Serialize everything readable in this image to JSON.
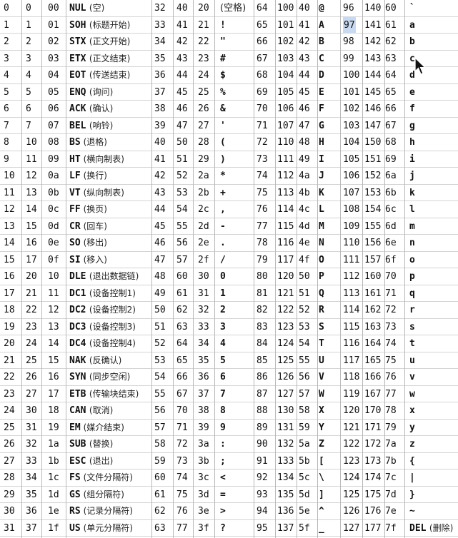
{
  "colors": {
    "grid": "#b8b8b8",
    "row_line": "#d4d4d4",
    "highlight": "#c8d9f0",
    "text": "#111111"
  },
  "selection": {
    "col": 3,
    "row": 1
  },
  "cursor": {
    "icon": "mouse-pointer-icon"
  },
  "columns": [
    {
      "rows": [
        {
          "dec": "0",
          "oct": "0",
          "hex": "00",
          "char": "NUL",
          "note": "(空)"
        },
        {
          "dec": "1",
          "oct": "1",
          "hex": "01",
          "char": "SOH",
          "note": "(标题开始)"
        },
        {
          "dec": "2",
          "oct": "2",
          "hex": "02",
          "char": "STX",
          "note": "(正文开始)"
        },
        {
          "dec": "3",
          "oct": "3",
          "hex": "03",
          "char": "ETX",
          "note": "(正文结束)"
        },
        {
          "dec": "4",
          "oct": "4",
          "hex": "04",
          "char": "EOT",
          "note": "(传送结束)"
        },
        {
          "dec": "5",
          "oct": "5",
          "hex": "05",
          "char": "ENQ",
          "note": "(询问)"
        },
        {
          "dec": "6",
          "oct": "6",
          "hex": "06",
          "char": "ACK",
          "note": "(确认)"
        },
        {
          "dec": "7",
          "oct": "7",
          "hex": "07",
          "char": "BEL",
          "note": "(响铃)"
        },
        {
          "dec": "8",
          "oct": "10",
          "hex": "08",
          "char": "BS",
          "note": "(退格)"
        },
        {
          "dec": "9",
          "oct": "11",
          "hex": "09",
          "char": "HT",
          "note": "(横向制表)"
        },
        {
          "dec": "10",
          "oct": "12",
          "hex": "0a",
          "char": "LF",
          "note": "(换行)"
        },
        {
          "dec": "11",
          "oct": "13",
          "hex": "0b",
          "char": "VT",
          "note": "(纵向制表)"
        },
        {
          "dec": "12",
          "oct": "14",
          "hex": "0c",
          "char": "FF",
          "note": "(换页)"
        },
        {
          "dec": "13",
          "oct": "15",
          "hex": "0d",
          "char": "CR",
          "note": "(回车)"
        },
        {
          "dec": "14",
          "oct": "16",
          "hex": "0e",
          "char": "SO",
          "note": "(移出)"
        },
        {
          "dec": "15",
          "oct": "17",
          "hex": "0f",
          "char": "SI",
          "note": "(移入)"
        },
        {
          "dec": "16",
          "oct": "20",
          "hex": "10",
          "char": "DLE",
          "note": "(退出数据链)"
        },
        {
          "dec": "17",
          "oct": "21",
          "hex": "11",
          "char": "DC1",
          "note": "(设备控制1)"
        },
        {
          "dec": "18",
          "oct": "22",
          "hex": "12",
          "char": "DC2",
          "note": "(设备控制2)"
        },
        {
          "dec": "19",
          "oct": "23",
          "hex": "13",
          "char": "DC3",
          "note": "(设备控制3)"
        },
        {
          "dec": "20",
          "oct": "24",
          "hex": "14",
          "char": "DC4",
          "note": "(设备控制4)"
        },
        {
          "dec": "21",
          "oct": "25",
          "hex": "15",
          "char": "NAK",
          "note": "(反确认)"
        },
        {
          "dec": "22",
          "oct": "26",
          "hex": "16",
          "char": "SYN",
          "note": "(同步空闲)"
        },
        {
          "dec": "23",
          "oct": "27",
          "hex": "17",
          "char": "ETB",
          "note": "(传输块结束)"
        },
        {
          "dec": "24",
          "oct": "30",
          "hex": "18",
          "char": "CAN",
          "note": "(取消)"
        },
        {
          "dec": "25",
          "oct": "31",
          "hex": "19",
          "char": "EM",
          "note": "(媒介结束)"
        },
        {
          "dec": "26",
          "oct": "32",
          "hex": "1a",
          "char": "SUB",
          "note": "(替换)"
        },
        {
          "dec": "27",
          "oct": "33",
          "hex": "1b",
          "char": "ESC",
          "note": "(退出)"
        },
        {
          "dec": "28",
          "oct": "34",
          "hex": "1c",
          "char": "FS",
          "note": "(文件分隔符)"
        },
        {
          "dec": "29",
          "oct": "35",
          "hex": "1d",
          "char": "GS",
          "note": "(组分隔符)"
        },
        {
          "dec": "30",
          "oct": "36",
          "hex": "1e",
          "char": "RS",
          "note": "(记录分隔符)"
        },
        {
          "dec": "31",
          "oct": "37",
          "hex": "1f",
          "char": "US",
          "note": "(单元分隔符)"
        }
      ]
    },
    {
      "rows": [
        {
          "dec": "32",
          "oct": "40",
          "hex": "20",
          "char": "(空格)",
          "note": ""
        },
        {
          "dec": "33",
          "oct": "41",
          "hex": "21",
          "char": "!",
          "note": ""
        },
        {
          "dec": "34",
          "oct": "42",
          "hex": "22",
          "char": "\"",
          "note": ""
        },
        {
          "dec": "35",
          "oct": "43",
          "hex": "23",
          "char": "#",
          "note": ""
        },
        {
          "dec": "36",
          "oct": "44",
          "hex": "24",
          "char": "$",
          "note": ""
        },
        {
          "dec": "37",
          "oct": "45",
          "hex": "25",
          "char": "%",
          "note": ""
        },
        {
          "dec": "38",
          "oct": "46",
          "hex": "26",
          "char": "&",
          "note": ""
        },
        {
          "dec": "39",
          "oct": "47",
          "hex": "27",
          "char": "'",
          "note": ""
        },
        {
          "dec": "40",
          "oct": "50",
          "hex": "28",
          "char": "(",
          "note": ""
        },
        {
          "dec": "41",
          "oct": "51",
          "hex": "29",
          "char": ")",
          "note": ""
        },
        {
          "dec": "42",
          "oct": "52",
          "hex": "2a",
          "char": "*",
          "note": ""
        },
        {
          "dec": "43",
          "oct": "53",
          "hex": "2b",
          "char": "+",
          "note": ""
        },
        {
          "dec": "44",
          "oct": "54",
          "hex": "2c",
          "char": ",",
          "note": ""
        },
        {
          "dec": "45",
          "oct": "55",
          "hex": "2d",
          "char": "-",
          "note": ""
        },
        {
          "dec": "46",
          "oct": "56",
          "hex": "2e",
          "char": ".",
          "note": ""
        },
        {
          "dec": "47",
          "oct": "57",
          "hex": "2f",
          "char": "/",
          "note": ""
        },
        {
          "dec": "48",
          "oct": "60",
          "hex": "30",
          "char": "0",
          "note": ""
        },
        {
          "dec": "49",
          "oct": "61",
          "hex": "31",
          "char": "1",
          "note": ""
        },
        {
          "dec": "50",
          "oct": "62",
          "hex": "32",
          "char": "2",
          "note": ""
        },
        {
          "dec": "51",
          "oct": "63",
          "hex": "33",
          "char": "3",
          "note": ""
        },
        {
          "dec": "52",
          "oct": "64",
          "hex": "34",
          "char": "4",
          "note": ""
        },
        {
          "dec": "53",
          "oct": "65",
          "hex": "35",
          "char": "5",
          "note": ""
        },
        {
          "dec": "54",
          "oct": "66",
          "hex": "36",
          "char": "6",
          "note": ""
        },
        {
          "dec": "55",
          "oct": "67",
          "hex": "37",
          "char": "7",
          "note": ""
        },
        {
          "dec": "56",
          "oct": "70",
          "hex": "38",
          "char": "8",
          "note": ""
        },
        {
          "dec": "57",
          "oct": "71",
          "hex": "39",
          "char": "9",
          "note": ""
        },
        {
          "dec": "58",
          "oct": "72",
          "hex": "3a",
          "char": ":",
          "note": ""
        },
        {
          "dec": "59",
          "oct": "73",
          "hex": "3b",
          "char": ";",
          "note": ""
        },
        {
          "dec": "60",
          "oct": "74",
          "hex": "3c",
          "char": "<",
          "note": ""
        },
        {
          "dec": "61",
          "oct": "75",
          "hex": "3d",
          "char": "=",
          "note": ""
        },
        {
          "dec": "62",
          "oct": "76",
          "hex": "3e",
          "char": ">",
          "note": ""
        },
        {
          "dec": "63",
          "oct": "77",
          "hex": "3f",
          "char": "?",
          "note": ""
        }
      ]
    },
    {
      "rows": [
        {
          "dec": "64",
          "oct": "100",
          "hex": "40",
          "char": "@",
          "note": ""
        },
        {
          "dec": "65",
          "oct": "101",
          "hex": "41",
          "char": "A",
          "note": ""
        },
        {
          "dec": "66",
          "oct": "102",
          "hex": "42",
          "char": "B",
          "note": ""
        },
        {
          "dec": "67",
          "oct": "103",
          "hex": "43",
          "char": "C",
          "note": ""
        },
        {
          "dec": "68",
          "oct": "104",
          "hex": "44",
          "char": "D",
          "note": ""
        },
        {
          "dec": "69",
          "oct": "105",
          "hex": "45",
          "char": "E",
          "note": ""
        },
        {
          "dec": "70",
          "oct": "106",
          "hex": "46",
          "char": "F",
          "note": ""
        },
        {
          "dec": "71",
          "oct": "107",
          "hex": "47",
          "char": "G",
          "note": ""
        },
        {
          "dec": "72",
          "oct": "110",
          "hex": "48",
          "char": "H",
          "note": ""
        },
        {
          "dec": "73",
          "oct": "111",
          "hex": "49",
          "char": "I",
          "note": ""
        },
        {
          "dec": "74",
          "oct": "112",
          "hex": "4a",
          "char": "J",
          "note": ""
        },
        {
          "dec": "75",
          "oct": "113",
          "hex": "4b",
          "char": "K",
          "note": ""
        },
        {
          "dec": "76",
          "oct": "114",
          "hex": "4c",
          "char": "L",
          "note": ""
        },
        {
          "dec": "77",
          "oct": "115",
          "hex": "4d",
          "char": "M",
          "note": ""
        },
        {
          "dec": "78",
          "oct": "116",
          "hex": "4e",
          "char": "N",
          "note": ""
        },
        {
          "dec": "79",
          "oct": "117",
          "hex": "4f",
          "char": "O",
          "note": ""
        },
        {
          "dec": "80",
          "oct": "120",
          "hex": "50",
          "char": "P",
          "note": ""
        },
        {
          "dec": "81",
          "oct": "121",
          "hex": "51",
          "char": "Q",
          "note": ""
        },
        {
          "dec": "82",
          "oct": "122",
          "hex": "52",
          "char": "R",
          "note": ""
        },
        {
          "dec": "83",
          "oct": "123",
          "hex": "53",
          "char": "S",
          "note": ""
        },
        {
          "dec": "84",
          "oct": "124",
          "hex": "54",
          "char": "T",
          "note": ""
        },
        {
          "dec": "85",
          "oct": "125",
          "hex": "55",
          "char": "U",
          "note": ""
        },
        {
          "dec": "86",
          "oct": "126",
          "hex": "56",
          "char": "V",
          "note": ""
        },
        {
          "dec": "87",
          "oct": "127",
          "hex": "57",
          "char": "W",
          "note": ""
        },
        {
          "dec": "88",
          "oct": "130",
          "hex": "58",
          "char": "X",
          "note": ""
        },
        {
          "dec": "89",
          "oct": "131",
          "hex": "59",
          "char": "Y",
          "note": ""
        },
        {
          "dec": "90",
          "oct": "132",
          "hex": "5a",
          "char": "Z",
          "note": ""
        },
        {
          "dec": "91",
          "oct": "133",
          "hex": "5b",
          "char": "[",
          "note": ""
        },
        {
          "dec": "92",
          "oct": "134",
          "hex": "5c",
          "char": "\\",
          "note": ""
        },
        {
          "dec": "93",
          "oct": "135",
          "hex": "5d",
          "char": "]",
          "note": ""
        },
        {
          "dec": "94",
          "oct": "136",
          "hex": "5e",
          "char": "^",
          "note": ""
        },
        {
          "dec": "95",
          "oct": "137",
          "hex": "5f",
          "char": "_",
          "note": ""
        }
      ]
    },
    {
      "rows": [
        {
          "dec": "96",
          "oct": "140",
          "hex": "60",
          "char": "`",
          "note": ""
        },
        {
          "dec": "97",
          "oct": "141",
          "hex": "61",
          "char": "a",
          "note": ""
        },
        {
          "dec": "98",
          "oct": "142",
          "hex": "62",
          "char": "b",
          "note": ""
        },
        {
          "dec": "99",
          "oct": "143",
          "hex": "63",
          "char": "c",
          "note": ""
        },
        {
          "dec": "100",
          "oct": "144",
          "hex": "64",
          "char": "d",
          "note": ""
        },
        {
          "dec": "101",
          "oct": "145",
          "hex": "65",
          "char": "e",
          "note": ""
        },
        {
          "dec": "102",
          "oct": "146",
          "hex": "66",
          "char": "f",
          "note": ""
        },
        {
          "dec": "103",
          "oct": "147",
          "hex": "67",
          "char": "g",
          "note": ""
        },
        {
          "dec": "104",
          "oct": "150",
          "hex": "68",
          "char": "h",
          "note": ""
        },
        {
          "dec": "105",
          "oct": "151",
          "hex": "69",
          "char": "i",
          "note": ""
        },
        {
          "dec": "106",
          "oct": "152",
          "hex": "6a",
          "char": "j",
          "note": ""
        },
        {
          "dec": "107",
          "oct": "153",
          "hex": "6b",
          "char": "k",
          "note": ""
        },
        {
          "dec": "108",
          "oct": "154",
          "hex": "6c",
          "char": "l",
          "note": ""
        },
        {
          "dec": "109",
          "oct": "155",
          "hex": "6d",
          "char": "m",
          "note": ""
        },
        {
          "dec": "110",
          "oct": "156",
          "hex": "6e",
          "char": "n",
          "note": ""
        },
        {
          "dec": "111",
          "oct": "157",
          "hex": "6f",
          "char": "o",
          "note": ""
        },
        {
          "dec": "112",
          "oct": "160",
          "hex": "70",
          "char": "p",
          "note": ""
        },
        {
          "dec": "113",
          "oct": "161",
          "hex": "71",
          "char": "q",
          "note": ""
        },
        {
          "dec": "114",
          "oct": "162",
          "hex": "72",
          "char": "r",
          "note": ""
        },
        {
          "dec": "115",
          "oct": "163",
          "hex": "73",
          "char": "s",
          "note": ""
        },
        {
          "dec": "116",
          "oct": "164",
          "hex": "74",
          "char": "t",
          "note": ""
        },
        {
          "dec": "117",
          "oct": "165",
          "hex": "75",
          "char": "u",
          "note": ""
        },
        {
          "dec": "118",
          "oct": "166",
          "hex": "76",
          "char": "v",
          "note": ""
        },
        {
          "dec": "119",
          "oct": "167",
          "hex": "77",
          "char": "w",
          "note": ""
        },
        {
          "dec": "120",
          "oct": "170",
          "hex": "78",
          "char": "x",
          "note": ""
        },
        {
          "dec": "121",
          "oct": "171",
          "hex": "79",
          "char": "y",
          "note": ""
        },
        {
          "dec": "122",
          "oct": "172",
          "hex": "7a",
          "char": "z",
          "note": ""
        },
        {
          "dec": "123",
          "oct": "173",
          "hex": "7b",
          "char": "{",
          "note": ""
        },
        {
          "dec": "124",
          "oct": "174",
          "hex": "7c",
          "char": "|",
          "note": ""
        },
        {
          "dec": "125",
          "oct": "175",
          "hex": "7d",
          "char": "}",
          "note": ""
        },
        {
          "dec": "126",
          "oct": "176",
          "hex": "7e",
          "char": "~",
          "note": ""
        },
        {
          "dec": "127",
          "oct": "177",
          "hex": "7f",
          "char": "DEL",
          "note": "(删除)"
        }
      ]
    }
  ]
}
